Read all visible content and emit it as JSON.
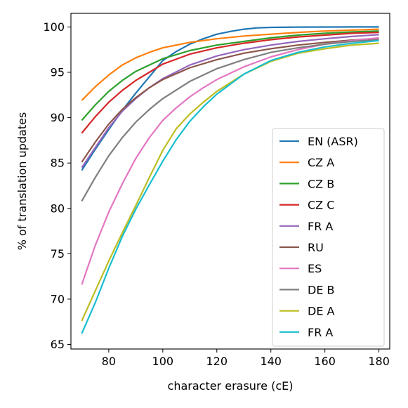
{
  "chart_data": {
    "type": "line",
    "xlabel": "character erasure (cE)",
    "ylabel": "% of translation updates",
    "xlim": [
      66,
      184
    ],
    "ylim": [
      64.5,
      101.5
    ],
    "xticks": [
      80,
      100,
      120,
      140,
      160,
      180
    ],
    "yticks": [
      65,
      70,
      75,
      80,
      85,
      90,
      95,
      100
    ],
    "grid": false,
    "legend_position": "lower-right",
    "series": [
      {
        "name": "EN (ASR)",
        "color": "#1f77b4",
        "x": [
          70,
          75,
          80,
          85,
          90,
          95,
          100,
          105,
          110,
          115,
          120,
          125,
          130,
          135,
          140,
          150,
          160,
          170,
          180
        ],
        "y": [
          84.2,
          86.5,
          88.7,
          90.8,
          92.7,
          94.5,
          96.3,
          97.3,
          98.1,
          98.7,
          99.2,
          99.5,
          99.75,
          99.9,
          99.95,
          99.98,
          99.99,
          100.0,
          100.0
        ]
      },
      {
        "name": "CZ A",
        "color": "#ff7f0e",
        "x": [
          70,
          75,
          80,
          85,
          90,
          95,
          100,
          110,
          120,
          130,
          140,
          150,
          160,
          170,
          180
        ],
        "y": [
          91.9,
          93.4,
          94.7,
          95.8,
          96.6,
          97.2,
          97.7,
          98.3,
          98.7,
          99.0,
          99.2,
          99.4,
          99.55,
          99.65,
          99.75
        ]
      },
      {
        "name": "CZ B",
        "color": "#2ca02c",
        "x": [
          70,
          75,
          80,
          85,
          90,
          95,
          100,
          110,
          120,
          130,
          140,
          150,
          160,
          170,
          180
        ],
        "y": [
          89.7,
          91.4,
          92.9,
          94.1,
          95.1,
          95.8,
          96.5,
          97.4,
          98.0,
          98.4,
          98.8,
          99.1,
          99.3,
          99.45,
          99.55
        ]
      },
      {
        "name": "CZ C",
        "color": "#d62728",
        "x": [
          70,
          75,
          80,
          85,
          90,
          95,
          100,
          110,
          120,
          130,
          140,
          150,
          160,
          170,
          180
        ],
        "y": [
          88.3,
          90.1,
          91.7,
          93.0,
          94.1,
          95.0,
          95.9,
          97.0,
          97.7,
          98.2,
          98.6,
          98.9,
          99.1,
          99.3,
          99.4
        ]
      },
      {
        "name": "FR A",
        "color": "#9467bd",
        "x": [
          70,
          75,
          80,
          85,
          90,
          95,
          100,
          110,
          120,
          130,
          140,
          150,
          160,
          170,
          180
        ],
        "y": [
          84.5,
          86.7,
          88.9,
          90.7,
          92.1,
          93.3,
          94.3,
          95.8,
          96.8,
          97.5,
          98.0,
          98.4,
          98.7,
          98.95,
          99.15
        ]
      },
      {
        "name": "RU",
        "color": "#8c564b",
        "x": [
          70,
          75,
          80,
          85,
          90,
          95,
          100,
          110,
          120,
          130,
          140,
          150,
          160,
          170,
          180
        ],
        "y": [
          85.1,
          87.3,
          89.3,
          90.9,
          92.2,
          93.3,
          94.2,
          95.5,
          96.4,
          97.1,
          97.6,
          98.0,
          98.3,
          98.55,
          98.75
        ]
      },
      {
        "name": "ES",
        "color": "#e377c2",
        "x": [
          70,
          75,
          80,
          85,
          90,
          95,
          100,
          105,
          110,
          115,
          120,
          130,
          140,
          150,
          160,
          170,
          180
        ],
        "y": [
          71.6,
          75.9,
          79.6,
          82.7,
          85.5,
          87.8,
          89.7,
          91.1,
          92.3,
          93.3,
          94.2,
          95.6,
          96.7,
          97.5,
          98.1,
          98.5,
          98.8
        ]
      },
      {
        "name": "DE B",
        "color": "#7f7f7f",
        "x": [
          70,
          75,
          80,
          85,
          90,
          95,
          100,
          110,
          120,
          130,
          140,
          150,
          160,
          170,
          180
        ],
        "y": [
          80.8,
          83.4,
          85.8,
          87.8,
          89.5,
          90.9,
          92.1,
          94.0,
          95.4,
          96.4,
          97.2,
          97.7,
          98.1,
          98.4,
          98.6
        ]
      },
      {
        "name": "DE A",
        "color": "#bcbd22",
        "x": [
          70,
          75,
          80,
          85,
          90,
          95,
          100,
          105,
          110,
          115,
          120,
          130,
          140,
          150,
          160,
          170,
          180
        ],
        "y": [
          67.6,
          70.9,
          74.2,
          77.3,
          80.3,
          83.4,
          86.4,
          88.8,
          90.4,
          91.7,
          92.9,
          94.8,
          96.2,
          97.1,
          97.6,
          98.0,
          98.2
        ]
      },
      {
        "name": "FR A",
        "color": "#17becf",
        "x": [
          70,
          75,
          80,
          85,
          90,
          95,
          100,
          105,
          110,
          115,
          120,
          130,
          140,
          150,
          160,
          170,
          180
        ],
        "y": [
          66.2,
          69.6,
          73.4,
          76.9,
          79.9,
          82.6,
          85.2,
          87.6,
          89.6,
          91.2,
          92.6,
          94.8,
          96.3,
          97.2,
          97.8,
          98.2,
          98.5
        ]
      }
    ]
  }
}
